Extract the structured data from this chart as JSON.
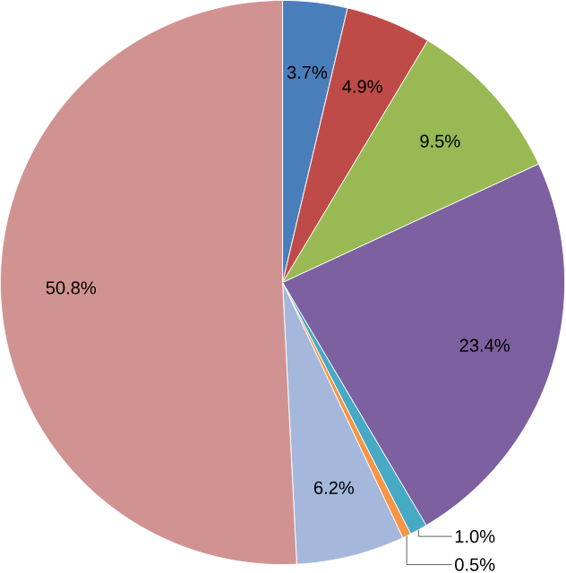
{
  "chart_data": {
    "type": "pie",
    "categories": [
      null,
      null,
      null,
      null,
      null,
      null,
      null,
      null
    ],
    "values": [
      3.7,
      4.9,
      9.5,
      23.4,
      1.0,
      0.5,
      6.2,
      50.8
    ],
    "colors": [
      "#4a7ebb",
      "#be4b48",
      "#98b954",
      "#7d60a0",
      "#46aac5",
      "#f69545",
      "#a5b8dc",
      "#d19392"
    ],
    "value_labels": [
      "3.7%",
      "4.9%",
      "9.5%",
      "23.4%",
      "1.0%",
      "0.5%",
      "6.2%",
      "50.8%"
    ]
  }
}
